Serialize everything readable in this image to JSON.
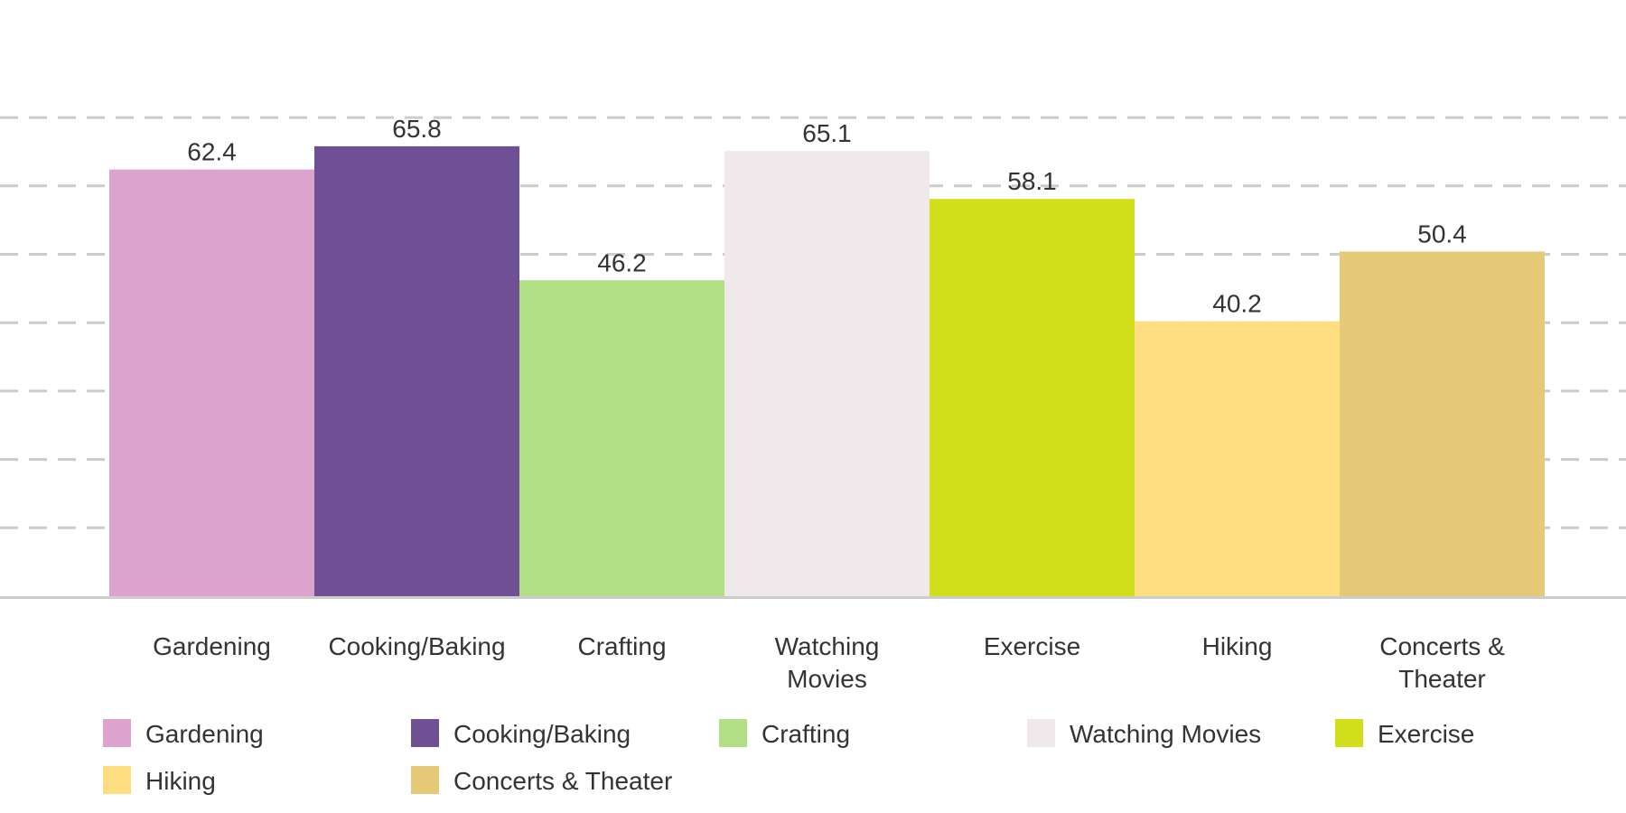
{
  "chart_data": {
    "type": "bar",
    "title": "",
    "xlabel": "",
    "ylabel": "",
    "ylim": [
      0,
      70
    ],
    "grid": true,
    "legend_position": "bottom",
    "categories": [
      "Gardening",
      "Cooking/Baking",
      "Crafting",
      "Watching Movies",
      "Exercise",
      "Hiking",
      "Concerts & Theater"
    ],
    "tick_labels": [
      [
        "Gardening"
      ],
      [
        "Cooking/Baking"
      ],
      [
        "Crafting"
      ],
      [
        "Watching",
        "Movies"
      ],
      [
        "Exercise"
      ],
      [
        "Hiking"
      ],
      [
        "Concerts &",
        "Theater"
      ]
    ],
    "values": [
      62.4,
      65.8,
      46.2,
      65.1,
      58.1,
      40.2,
      50.4
    ],
    "value_labels": [
      "62.4",
      "65.8",
      "46.2",
      "65.1",
      "58.1",
      "40.2",
      "50.4"
    ],
    "colors": [
      "#dba3ce",
      "#705095",
      "#b2de86",
      "#efe9ec",
      "#d0df1a",
      "#fede80",
      "#e5c977"
    ],
    "legend": [
      "Gardening",
      "Cooking/Baking",
      "Crafting",
      "Watching Movies",
      "Exercise",
      "Hiking",
      "Concerts & Theater"
    ]
  }
}
